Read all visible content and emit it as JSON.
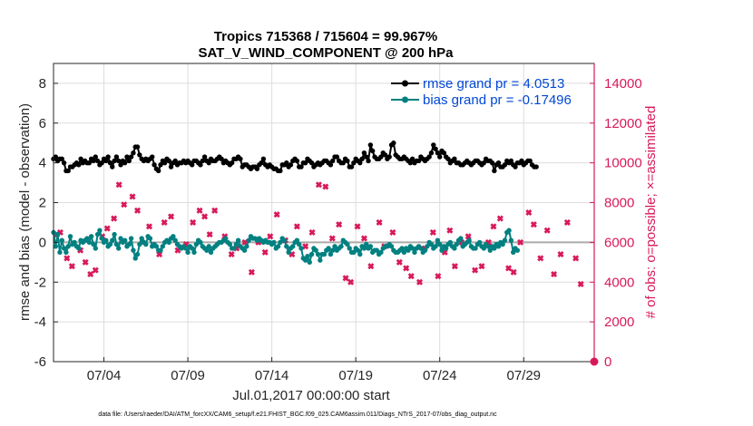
{
  "chart_data": {
    "type": "line",
    "title": "Tropics 715368 / 715604 = 99.967%",
    "subtitle": "SAT_V_WIND_COMPONENT @ 200 hPa",
    "xlabel": "Jul.01,2017 00:00:00 start",
    "ylabel_left": "rmse and bias (model - observation)",
    "ylabel_right": "# of obs: o=possible; ×=assimilated",
    "footer": "data file: /Users/raeder/DAI/ATM_forcXX/CAM6_setup/f.e21.FHIST_BGC.f09_025.CAM6assim.011/Diags_NTrS_2017-07/obs_diag_output.nc",
    "xlim_days": [
      1,
      33.2
    ],
    "xticks": [
      {
        "day": 4,
        "label": "07/04"
      },
      {
        "day": 9,
        "label": "07/09"
      },
      {
        "day": 14,
        "label": "07/14"
      },
      {
        "day": 19,
        "label": "07/19"
      },
      {
        "day": 24,
        "label": "07/24"
      },
      {
        "day": 29,
        "label": "07/29"
      }
    ],
    "ylim_left": [
      -6,
      9
    ],
    "yticks_left": [
      -6,
      -4,
      -2,
      0,
      2,
      4,
      6,
      8
    ],
    "ylim_right": [
      0,
      15000
    ],
    "yticks_right": [
      0,
      2000,
      4000,
      6000,
      8000,
      10000,
      12000,
      14000
    ],
    "grid": true,
    "legend_position": "top-right",
    "colors": {
      "rmse": "#000000",
      "bias": "#008080",
      "obs": "#d8195a",
      "zero_line": "#aaaaaa",
      "legend_text": "#0047d6"
    },
    "series": [
      {
        "name": "rmse grand pr = 4.0513",
        "kind": "rmse",
        "x_start": 1.0,
        "x_step": 0.125,
        "values": [
          4.2,
          4.3,
          4.1,
          4.2,
          4.2,
          4.0,
          3.6,
          3.6,
          3.8,
          3.8,
          3.9,
          4.0,
          3.9,
          4.2,
          4.0,
          4.1,
          4.0,
          4.0,
          4.2,
          4.1,
          4.3,
          4.1,
          3.9,
          4.0,
          4.2,
          4.1,
          4.3,
          4.0,
          3.8,
          4.1,
          4.3,
          4.1,
          3.9,
          4.1,
          4.0,
          4.3,
          4.1,
          4.3,
          4.5,
          4.8,
          4.8,
          4.4,
          4.2,
          4.1,
          4.2,
          4.1,
          4.2,
          4.3,
          3.9,
          3.7,
          3.6,
          3.9,
          4.1,
          4.0,
          4.2,
          4.1,
          3.8,
          4.0,
          4.1,
          3.9,
          4.0,
          4.0,
          4.1,
          4.0,
          4.1,
          4.0,
          3.9,
          4.1,
          4.1,
          4.0,
          3.9,
          4.1,
          4.3,
          4.1,
          4.0,
          4.2,
          4.1,
          4.1,
          4.2,
          4.3,
          4.2,
          4.0,
          4.1,
          4.0,
          3.9,
          4.0,
          4.2,
          4.2,
          4.3,
          4.2,
          3.8,
          3.9,
          3.9,
          3.8,
          3.7,
          3.8,
          3.8,
          3.7,
          3.9,
          4.0,
          4.2,
          3.9,
          3.8,
          3.9,
          3.8,
          3.7,
          3.7,
          3.6,
          3.6,
          3.9,
          3.9,
          4.0,
          3.8,
          3.9,
          4.1,
          4.2,
          4.1,
          3.8,
          3.8,
          4.0,
          4.0,
          4.2,
          4.1,
          4.0,
          3.8,
          3.9,
          4.0,
          3.9,
          4.0,
          4.1,
          4.1,
          4.0,
          3.9,
          4.1,
          4.3,
          4.3,
          4.1,
          4.0,
          4.0,
          4.2,
          4.1,
          3.8,
          3.8,
          4.0,
          4.2,
          4.1,
          4.0,
          4.2,
          4.5,
          4.3,
          4.1,
          4.9,
          4.6,
          4.3,
          4.2,
          4.2,
          4.3,
          4.5,
          4.4,
          4.2,
          4.3,
          4.9,
          5.0,
          4.4,
          4.3,
          4.2,
          4.2,
          4.3,
          4.2,
          4.1,
          4.0,
          4.2,
          4.0,
          4.1,
          4.1,
          4.3,
          4.2,
          4.1,
          4.2,
          4.3,
          4.5,
          4.9,
          4.7,
          4.5,
          4.3,
          4.6,
          4.5,
          4.3,
          4.2,
          4.0,
          4.1,
          4.2,
          4.0,
          4.0,
          3.9,
          3.9,
          4.0,
          4.1,
          4.0,
          3.9,
          4.0,
          4.1,
          4.1,
          4.0,
          3.9,
          4.0,
          4.2,
          4.1,
          4.1,
          4.0,
          3.6,
          3.9,
          4.0,
          3.8,
          3.8,
          3.9,
          4.1,
          4.0,
          4.1,
          3.9,
          3.8,
          4.0,
          4.0,
          4.1,
          3.9,
          4.0,
          4.1,
          4.1,
          3.9,
          3.8,
          3.8
        ]
      },
      {
        "name": "bias grand pr = -0.17496",
        "kind": "bias",
        "x_start": 1.0,
        "x_step": 0.125,
        "values": [
          0.5,
          -0.2,
          0.4,
          -0.5,
          0.1,
          -0.3,
          -0.5,
          -0.2,
          0.3,
          -0.1,
          0.0,
          -0.2,
          -0.3,
          0.1,
          0.0,
          0.1,
          0.2,
          0.0,
          0.3,
          -0.1,
          -0.3,
          0.4,
          0.6,
          0.2,
          0.0,
          0.1,
          -0.2,
          -0.1,
          0.1,
          0.4,
          -0.1,
          -0.3,
          0.2,
          0.0,
          0.1,
          -0.2,
          -0.1,
          0.2,
          -0.4,
          -0.8,
          -0.6,
          -0.1,
          0.2,
          0.0,
          -0.1,
          0.3,
          0.2,
          -0.2,
          -0.1,
          -0.2,
          -0.4,
          -0.4,
          -0.2,
          0.0,
          0.1,
          0.0,
          0.2,
          0.3,
          0.1,
          -0.1,
          -0.2,
          -0.3,
          -0.2,
          -0.3,
          -0.5,
          -0.2,
          -0.3,
          -0.5,
          -0.1,
          0.1,
          0.0,
          -0.2,
          -0.3,
          -0.4,
          -0.2,
          -0.5,
          -0.3,
          -0.2,
          -0.1,
          0.0,
          0.0,
          0.1,
          0.2,
          0.0,
          -0.1,
          -0.3,
          -0.3,
          -0.1,
          0.1,
          -0.2,
          -0.3,
          -0.4,
          -0.2,
          0.1,
          0.3,
          0.2,
          0.2,
          0.1,
          0.2,
          0.1,
          0.0,
          0.1,
          0.0,
          0.0,
          -0.1,
          0.0,
          -0.3,
          -0.2,
          0.0,
          0.2,
          0.1,
          -0.2,
          -0.5,
          -0.3,
          -0.2,
          0.0,
          0.1,
          -0.1,
          -0.3,
          -0.8,
          -0.9,
          -0.7,
          -1.0,
          -0.6,
          -0.3,
          -0.4,
          -0.6,
          -0.9,
          -0.6,
          -0.6,
          -0.4,
          -0.3,
          -0.6,
          -0.4,
          -0.2,
          -0.4,
          -0.3,
          -0.2,
          0.1,
          0.0,
          -0.1,
          -0.3,
          -0.5,
          -0.5,
          -0.3,
          -0.4,
          -0.6,
          -0.2,
          -0.3,
          -0.1,
          -0.3,
          -0.2,
          -0.5,
          -0.4,
          -0.4,
          -0.6,
          -0.5,
          -0.3,
          -0.2,
          -0.2,
          -0.1,
          -0.2,
          -0.4,
          -0.5,
          -0.5,
          -0.4,
          -0.3,
          -0.5,
          -0.3,
          -0.4,
          -0.2,
          -0.3,
          -0.5,
          -0.3,
          -0.2,
          -0.3,
          -0.5,
          -0.4,
          -0.2,
          0.0,
          -0.1,
          -0.3,
          -0.2,
          0.1,
          -0.1,
          -0.4,
          -0.2,
          -0.3,
          -0.1,
          0.0,
          -0.2,
          -0.3,
          -0.1,
          0.1,
          0.2,
          -0.2,
          -0.1,
          0.0,
          0.1,
          -0.2,
          -0.3,
          -0.3,
          -0.1,
          0.0,
          -0.2,
          -0.3,
          -0.1,
          -0.2,
          -0.4,
          -0.2,
          -0.3,
          -0.1,
          -0.2,
          0.0,
          -0.1,
          0.1,
          0.5,
          0.6,
          0.1,
          -0.5,
          -0.3,
          -0.4
        ]
      },
      {
        "name": "# of obs assimilated",
        "kind": "obs",
        "axis": "right",
        "points": [
          [
            1.2,
            6400
          ],
          [
            1.4,
            6500
          ],
          [
            1.8,
            5200
          ],
          [
            2.1,
            4800
          ],
          [
            2.6,
            5600
          ],
          [
            2.9,
            5000
          ],
          [
            3.2,
            4400
          ],
          [
            3.5,
            4600
          ],
          [
            3.9,
            6300
          ],
          [
            4.2,
            6700
          ],
          [
            4.6,
            7200
          ],
          [
            4.9,
            8900
          ],
          [
            5.2,
            7900
          ],
          [
            5.7,
            8300
          ],
          [
            6.0,
            7600
          ],
          [
            6.3,
            6000
          ],
          [
            6.7,
            6800
          ],
          [
            7.3,
            5400
          ],
          [
            7.6,
            7000
          ],
          [
            8.0,
            7300
          ],
          [
            8.4,
            5600
          ],
          [
            8.9,
            5900
          ],
          [
            9.3,
            7000
          ],
          [
            9.7,
            7600
          ],
          [
            10.0,
            7300
          ],
          [
            10.3,
            6400
          ],
          [
            10.6,
            7600
          ],
          [
            11.2,
            6300
          ],
          [
            11.6,
            5400
          ],
          [
            11.9,
            5700
          ],
          [
            12.4,
            6000
          ],
          [
            12.8,
            4500
          ],
          [
            13.2,
            6000
          ],
          [
            13.6,
            5500
          ],
          [
            13.9,
            6300
          ],
          [
            14.3,
            7400
          ],
          [
            14.8,
            6100
          ],
          [
            15.2,
            5400
          ],
          [
            15.5,
            6800
          ],
          [
            16.0,
            5800
          ],
          [
            16.4,
            6500
          ],
          [
            16.8,
            8900
          ],
          [
            17.2,
            8800
          ],
          [
            17.6,
            6200
          ],
          [
            18.0,
            6900
          ],
          [
            18.4,
            4200
          ],
          [
            18.7,
            4000
          ],
          [
            19.1,
            6800
          ],
          [
            19.5,
            6200
          ],
          [
            19.9,
            4800
          ],
          [
            20.4,
            7000
          ],
          [
            20.7,
            5800
          ],
          [
            21.2,
            6500
          ],
          [
            21.6,
            5000
          ],
          [
            22.0,
            4700
          ],
          [
            22.3,
            4300
          ],
          [
            22.8,
            4000
          ],
          [
            23.1,
            5700
          ],
          [
            23.6,
            6500
          ],
          [
            23.9,
            4300
          ],
          [
            24.3,
            5500
          ],
          [
            24.6,
            6600
          ],
          [
            24.9,
            4800
          ],
          [
            25.3,
            6000
          ],
          [
            25.7,
            6300
          ],
          [
            26.1,
            4600
          ],
          [
            26.5,
            4800
          ],
          [
            26.9,
            6000
          ],
          [
            27.2,
            6800
          ],
          [
            27.6,
            7200
          ],
          [
            28.1,
            4700
          ],
          [
            28.4,
            4500
          ],
          [
            28.8,
            6000
          ],
          [
            29.3,
            7500
          ],
          [
            29.6,
            6900
          ],
          [
            30.0,
            5200
          ],
          [
            30.4,
            6600
          ],
          [
            30.8,
            4400
          ],
          [
            31.2,
            5400
          ],
          [
            31.6,
            7000
          ],
          [
            32.1,
            5200
          ],
          [
            32.4,
            3900
          ]
        ]
      }
    ]
  }
}
